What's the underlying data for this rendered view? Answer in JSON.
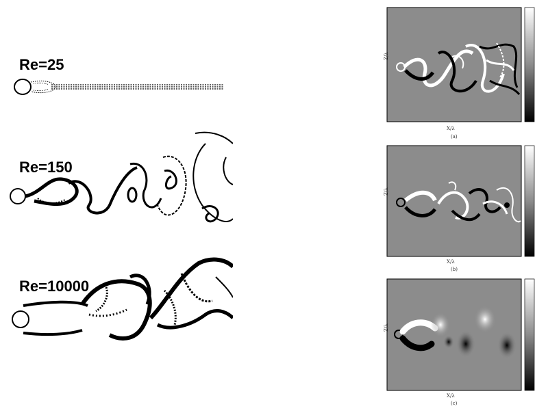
{
  "left_column": {
    "cases": [
      {
        "label": "Re=25"
      },
      {
        "label": "Re=150"
      },
      {
        "label": "Re=10000"
      }
    ]
  },
  "right_column": {
    "panels": [
      {
        "caption": "(a)",
        "xlabel": "X/λ",
        "ylabel": "Z/λ"
      },
      {
        "caption": "(b)",
        "xlabel": "X/λ",
        "ylabel": "Z/λ"
      },
      {
        "caption": "(c)",
        "xlabel": "X/λ",
        "ylabel": "Z/λ"
      }
    ]
  },
  "colors": {
    "background": "#ffffff",
    "ink": "#000000",
    "field_gray": "#8c8c8c"
  }
}
